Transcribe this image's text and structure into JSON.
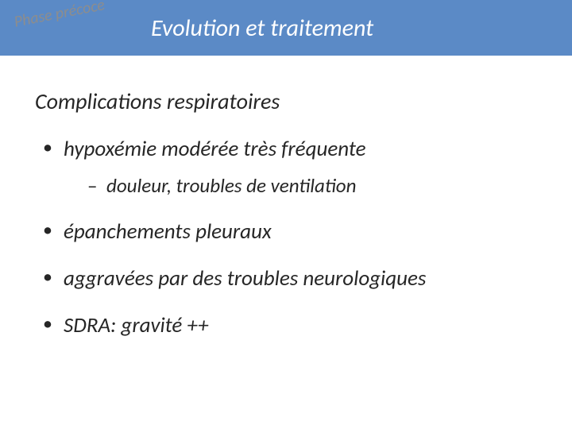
{
  "header": {
    "phase_label": "Phase précoce",
    "title": "Evolution  et traitement"
  },
  "content": {
    "section_title": "Complications respiratoires",
    "bullets": [
      {
        "text": "hypoxémie modérée très fréquente",
        "sub": [
          "douleur, troubles de ventilation"
        ]
      },
      {
        "text": "épanchements pleuraux"
      },
      {
        "text": "aggravées par des troubles neurologiques"
      },
      {
        "text": "SDRA: gravité ++"
      }
    ]
  },
  "colors": {
    "header_bg": "#5b8ac6",
    "header_text": "#ffffff",
    "phase_label": "#8d8d8d",
    "body_text": "#262626",
    "background": "#ffffff"
  }
}
